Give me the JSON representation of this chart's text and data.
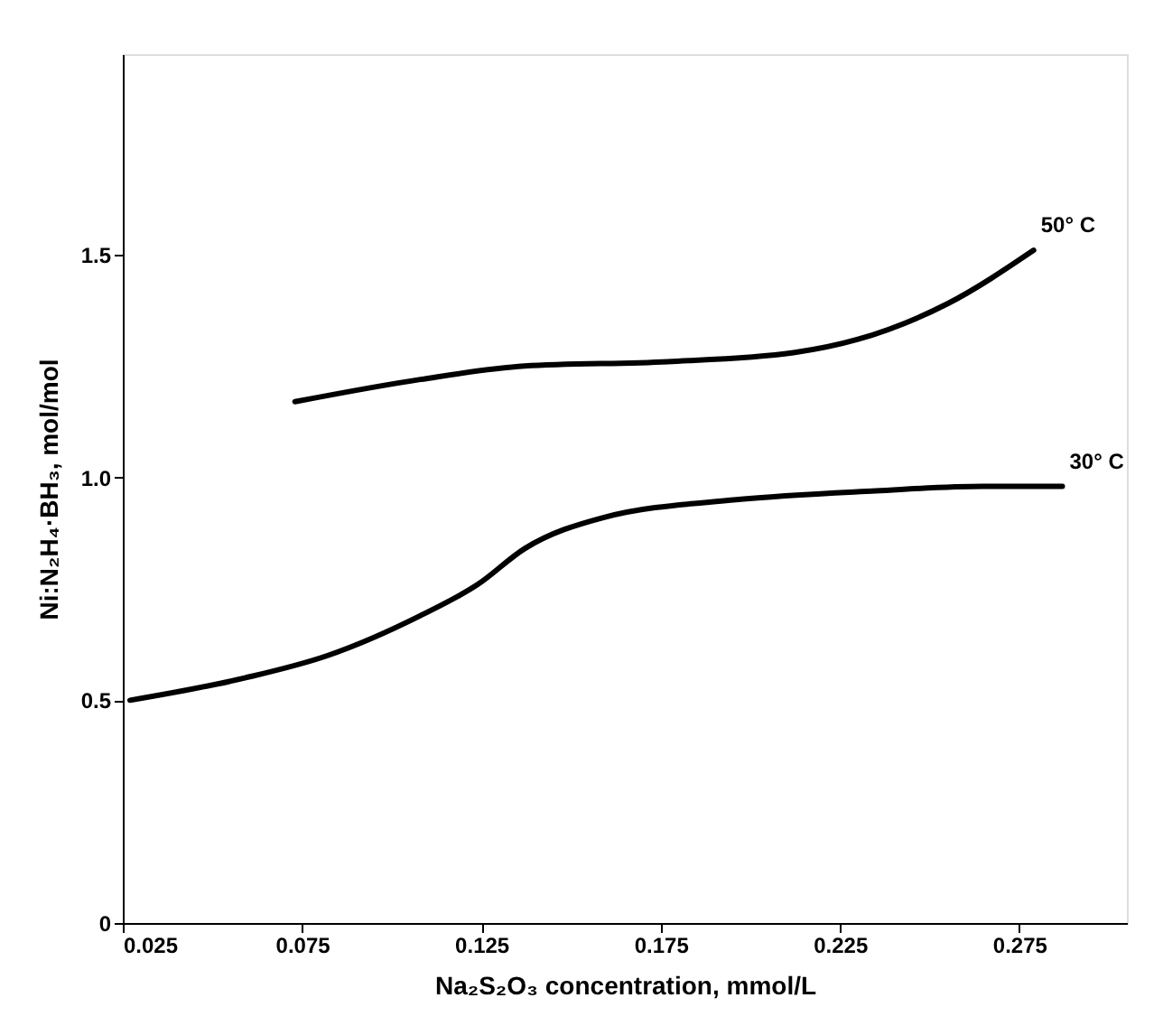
{
  "chart_data": {
    "type": "line",
    "xlabel": "Na₂S₂O₃ concentration, mmol/L",
    "ylabel": "Ni:N₂H₄·BH₃, mol/mol",
    "xlim": [
      0.025,
      0.305
    ],
    "xticks": [
      0.025,
      0.075,
      0.125,
      0.175,
      0.225,
      0.275
    ],
    "ylim": [
      0,
      1.95
    ],
    "yticks": [
      0,
      0.5,
      {
        "value": 1,
        "label": "1.0"
      },
      1.5
    ],
    "grid": false,
    "legend": false,
    "marker": "none",
    "line_style": "solid",
    "series": [
      {
        "name": "30° C",
        "color": "#000000",
        "x": [
          0.027,
          0.059,
          0.082,
          0.108,
          0.124,
          0.137,
          0.159,
          0.196,
          0.235,
          0.265,
          0.287
        ],
        "values": [
          0.5,
          0.55,
          0.6,
          0.69,
          0.76,
          0.84,
          0.91,
          0.95,
          0.97,
          0.98,
          0.98
        ]
      },
      {
        "name": "50° C",
        "color": "#000000",
        "x": [
          0.073,
          0.108,
          0.137,
          0.177,
          0.212,
          0.23,
          0.255,
          0.279
        ],
        "values": [
          1.17,
          1.22,
          1.25,
          1.26,
          1.28,
          1.31,
          1.39,
          1.51
        ]
      }
    ]
  }
}
